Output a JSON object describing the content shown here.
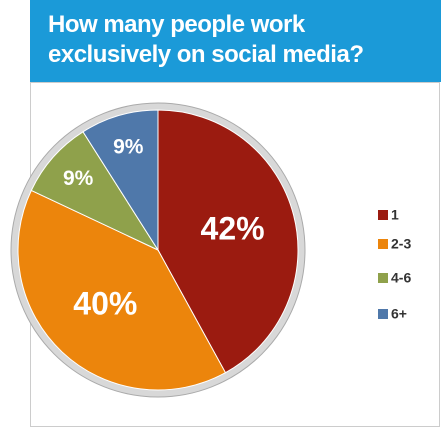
{
  "chart_data": {
    "type": "pie",
    "title": "How many people work exclusively on social media?",
    "categories": [
      "1",
      "2-3",
      "4-6",
      "6+"
    ],
    "values": [
      42,
      40,
      9,
      9
    ],
    "value_labels": [
      "42%",
      "40%",
      "9%",
      "9%"
    ],
    "colors": [
      "#9b1b10",
      "#ec850c",
      "#8fa14b",
      "#4f78aa"
    ]
  }
}
